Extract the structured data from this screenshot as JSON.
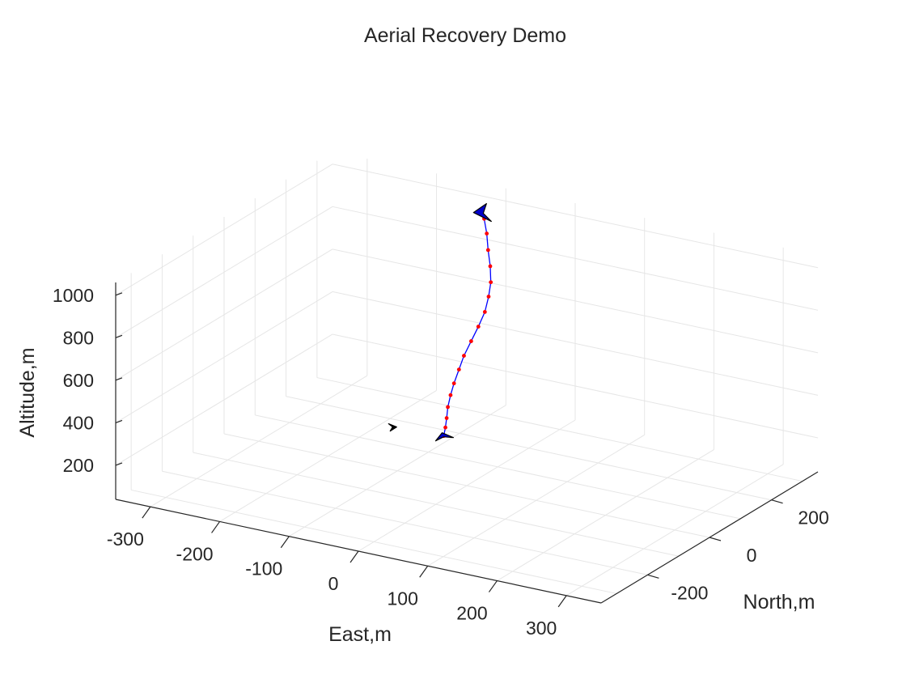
{
  "chart_data": {
    "type": "line",
    "title": "Aerial Recovery Demo",
    "xlabel": "East,m",
    "ylabel": "North,m",
    "zlabel": "Altitude,m",
    "xlim": [
      -350,
      350
    ],
    "ylim": [
      -350,
      350
    ],
    "zlim": [
      40,
      1060
    ],
    "x_ticks": [
      "-300",
      "-200",
      "-100",
      "0",
      "100",
      "200",
      "300"
    ],
    "y_ticks": [
      "-200",
      "0",
      "200"
    ],
    "z_ticks": [
      "200",
      "400",
      "600",
      "800",
      "1000"
    ],
    "grid": true,
    "view": "3d",
    "series": [
      {
        "color": "#0000ff",
        "marker_color": "#ff0000",
        "points": [
          [
            -92,
            262,
            1000
          ],
          [
            -82,
            248,
            950
          ],
          [
            -72,
            230,
            895
          ],
          [
            -60,
            210,
            845
          ],
          [
            -48,
            185,
            800
          ],
          [
            -40,
            160,
            760
          ],
          [
            -32,
            130,
            720
          ],
          [
            -28,
            100,
            680
          ],
          [
            -25,
            70,
            640
          ],
          [
            -22,
            40,
            600
          ],
          [
            -18,
            15,
            560
          ],
          [
            -14,
            -10,
            520
          ],
          [
            -10,
            -30,
            485
          ],
          [
            -5,
            -50,
            450
          ],
          [
            0,
            -65,
            415
          ],
          [
            4,
            -78,
            385
          ],
          [
            6,
            -88,
            355
          ]
        ]
      }
    ],
    "objects": [
      {
        "name": "aircraft-start",
        "color": "#0000cc",
        "at": [
          -96,
          268,
          1010
        ]
      },
      {
        "name": "aircraft-end",
        "color": "#0000cc",
        "at": [
          6,
          -88,
          355
        ]
      },
      {
        "name": "drogue",
        "color": "#000000",
        "at": [
          -40,
          -150,
          420
        ]
      }
    ]
  }
}
